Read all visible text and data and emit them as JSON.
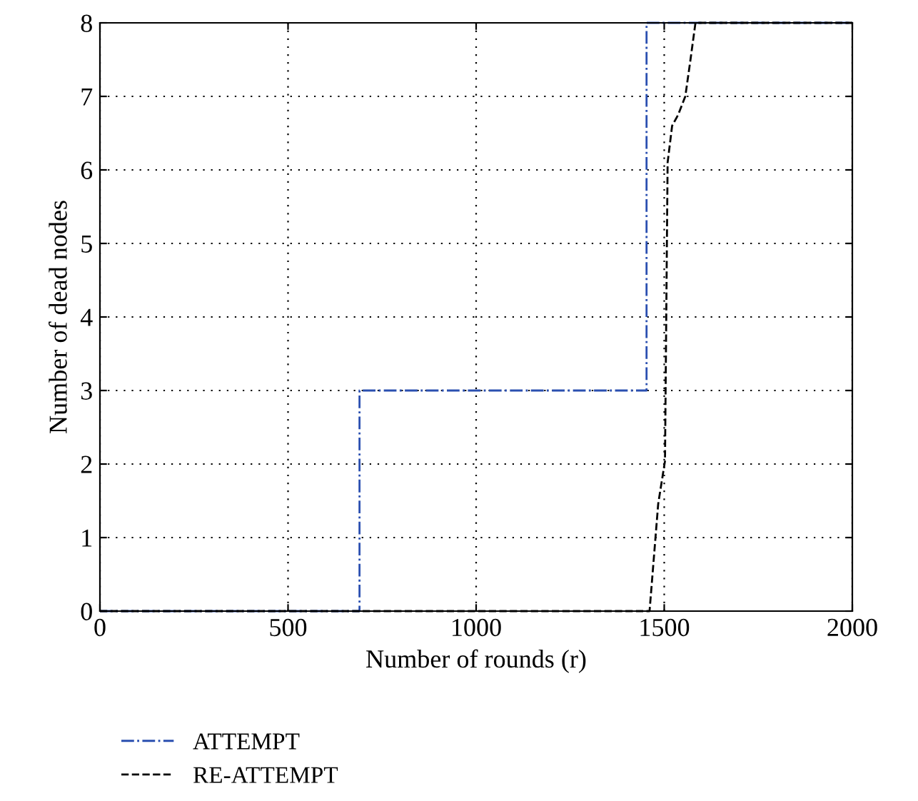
{
  "chart_data": {
    "type": "line",
    "xlabel": "Number of rounds (r)",
    "ylabel": "Number of dead nodes",
    "xlim": [
      0,
      2000
    ],
    "xticks": [
      0,
      500,
      1000,
      1500,
      2000
    ],
    "ylim": [
      0,
      8
    ],
    "yticks": [
      0,
      1,
      2,
      3,
      4,
      5,
      6,
      7,
      8
    ],
    "grid": true,
    "legend": "bottom",
    "series": [
      {
        "name": "ATTEMPT",
        "type": "step",
        "color": "#2a4fb0",
        "line_style": "dashdot",
        "x": [
          0,
          690,
          1453,
          2000
        ],
        "values": [
          0,
          3,
          8,
          8
        ]
      },
      {
        "name": "RE-ATTEMPT",
        "color": "#000000",
        "line_style": "dashed",
        "x": [
          0,
          1461,
          1484,
          1502,
          1509,
          1521,
          1537,
          1556,
          1569,
          1583,
          2000
        ],
        "values": [
          0,
          0,
          1.46,
          2.04,
          6.1,
          6.6,
          6.75,
          7.0,
          7.47,
          8,
          8
        ]
      }
    ]
  }
}
